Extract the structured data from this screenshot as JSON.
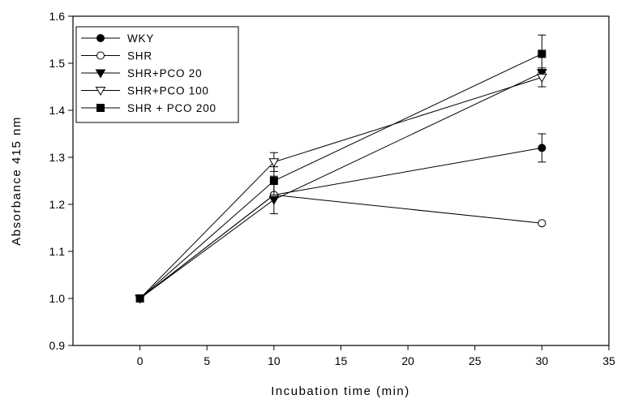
{
  "chart_data": {
    "type": "line",
    "xlabel": "Incubation time (min)",
    "ylabel": "Absorbance 415 nm",
    "xlim": [
      -5,
      35
    ],
    "ylim": [
      0.9,
      1.6
    ],
    "xticks": [
      0,
      5,
      10,
      15,
      20,
      25,
      30,
      35
    ],
    "yticks": [
      0.9,
      1.0,
      1.1,
      1.2,
      1.3,
      1.4,
      1.5,
      1.6
    ],
    "legend_position": "top-left",
    "grid": false,
    "series": [
      {
        "name": "WKY",
        "marker": "filled-circle",
        "x": [
          0,
          10,
          30
        ],
        "y": [
          1.0,
          1.22,
          1.32
        ],
        "err": [
          0,
          0.04,
          0.03
        ]
      },
      {
        "name": "SHR",
        "marker": "open-circle",
        "x": [
          0,
          10,
          30
        ],
        "y": [
          1.0,
          1.22,
          1.16
        ],
        "err": [
          0,
          0,
          0
        ]
      },
      {
        "name": "SHR+PCO 20",
        "marker": "filled-triangle-down",
        "x": [
          0,
          10,
          30
        ],
        "y": [
          1.0,
          1.21,
          1.48
        ],
        "err": [
          0,
          0,
          0
        ]
      },
      {
        "name": "SHR+PCO 100",
        "marker": "open-triangle-down",
        "x": [
          0,
          10,
          30
        ],
        "y": [
          1.0,
          1.29,
          1.47
        ],
        "err": [
          0,
          0.02,
          0.02
        ]
      },
      {
        "name": "SHR + PCO 200",
        "marker": "filled-square",
        "x": [
          0,
          10,
          30
        ],
        "y": [
          1.0,
          1.25,
          1.52
        ],
        "err": [
          0,
          0.03,
          0.04
        ]
      }
    ]
  }
}
